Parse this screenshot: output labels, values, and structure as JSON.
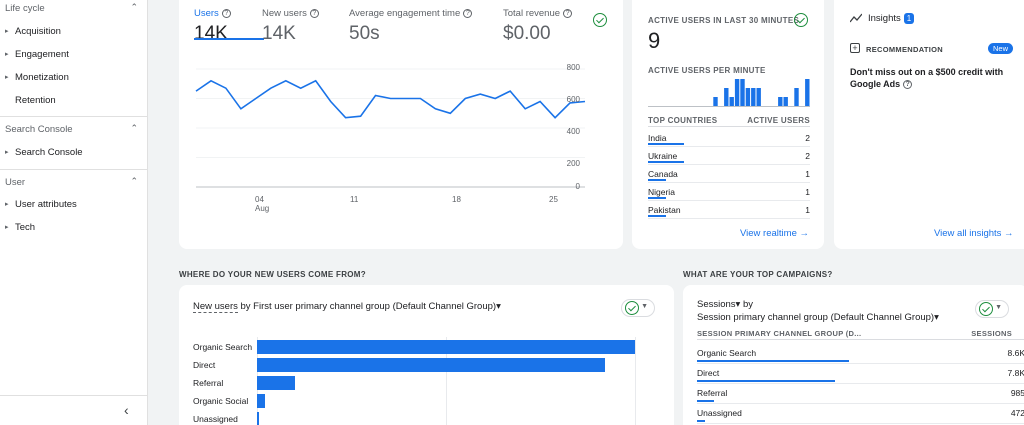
{
  "sidebar": {
    "lifecycle": {
      "title": "Life cycle",
      "items": [
        "Acquisition",
        "Engagement",
        "Monetization",
        "Retention"
      ]
    },
    "search_console": {
      "title": "Search Console",
      "items": [
        "Search Console"
      ]
    },
    "user": {
      "title": "User",
      "items": [
        "User attributes",
        "Tech"
      ]
    },
    "collapse_glyph": "‹",
    "chevron_glyph": "⌃",
    "caret_glyph": "▸"
  },
  "metrics": [
    {
      "label": "Users",
      "value": "14K"
    },
    {
      "label": "New users",
      "value": "14K"
    },
    {
      "label": "Average engagement time",
      "value": "50s"
    },
    {
      "label": "Total revenue",
      "value": "$0.00"
    }
  ],
  "users_chart": {
    "y_ticks": [
      "800",
      "600",
      "400",
      "200",
      "0"
    ],
    "x_ticks": [
      {
        "day": "04",
        "month": "Aug"
      },
      {
        "day": "11",
        "month": ""
      },
      {
        "day": "18",
        "month": ""
      },
      {
        "day": "25",
        "month": ""
      }
    ],
    "series": [
      650,
      720,
      670,
      530,
      600,
      670,
      720,
      670,
      720,
      580,
      470,
      480,
      620,
      600,
      600,
      600,
      530,
      500,
      600,
      630,
      600,
      650,
      530,
      580,
      470,
      570,
      580
    ]
  },
  "realtime": {
    "title": "ACTIVE USERS IN LAST 30 MINUTES",
    "count": "9",
    "per_minute_label": "ACTIVE USERS PER MINUTE",
    "per_minute": [
      0,
      0,
      0,
      0,
      0,
      0,
      0,
      0,
      0,
      0,
      0,
      0,
      1,
      0,
      2,
      1,
      3,
      3,
      2,
      2,
      2,
      0,
      0,
      0,
      1,
      1,
      0,
      2,
      0,
      3
    ],
    "col_country": "TOP COUNTRIES",
    "col_users": "ACTIVE USERS",
    "rows": [
      {
        "country": "India",
        "users": "2"
      },
      {
        "country": "Ukraine",
        "users": "2"
      },
      {
        "country": "Canada",
        "users": "1"
      },
      {
        "country": "Nigeria",
        "users": "1"
      },
      {
        "country": "Pakistan",
        "users": "1"
      }
    ],
    "link": "View realtime →"
  },
  "insights": {
    "title": "Insights",
    "badge": "1",
    "rec_label": "RECOMMENDATION",
    "new_label": "New",
    "text": "Don't miss out on a $500 credit with Google Ads",
    "link": "View all insights →"
  },
  "new_users": {
    "section_title": "WHERE DO YOUR NEW USERS COME FROM?",
    "title_metric": "New users",
    "title_rest": " by First user primary channel group (Default Channel Group)▾",
    "channels": [
      {
        "label": "Organic Search",
        "value": 100
      },
      {
        "label": "Direct",
        "value": 92
      },
      {
        "label": "Referral",
        "value": 10
      },
      {
        "label": "Organic Social",
        "value": 2
      },
      {
        "label": "Unassigned",
        "value": 0.5
      }
    ]
  },
  "campaigns": {
    "section_title": "WHAT ARE YOUR TOP CAMPAIGNS?",
    "title_line1": "Sessions▾ by",
    "title_line2": "Session primary channel group (Default Channel Group)▾",
    "col_group": "SESSION PRIMARY CHANNEL GROUP (D...",
    "col_sessions": "SESSIONS",
    "rows": [
      {
        "label": "Organic Search",
        "value": "8.6K",
        "num": 8600
      },
      {
        "label": "Direct",
        "value": "7.8K",
        "num": 7800
      },
      {
        "label": "Referral",
        "value": "985",
        "num": 985
      },
      {
        "label": "Unassigned",
        "value": "472",
        "num": 472
      }
    ]
  },
  "colors": {
    "accent": "#1a73e8",
    "success": "#1e8e3e"
  }
}
